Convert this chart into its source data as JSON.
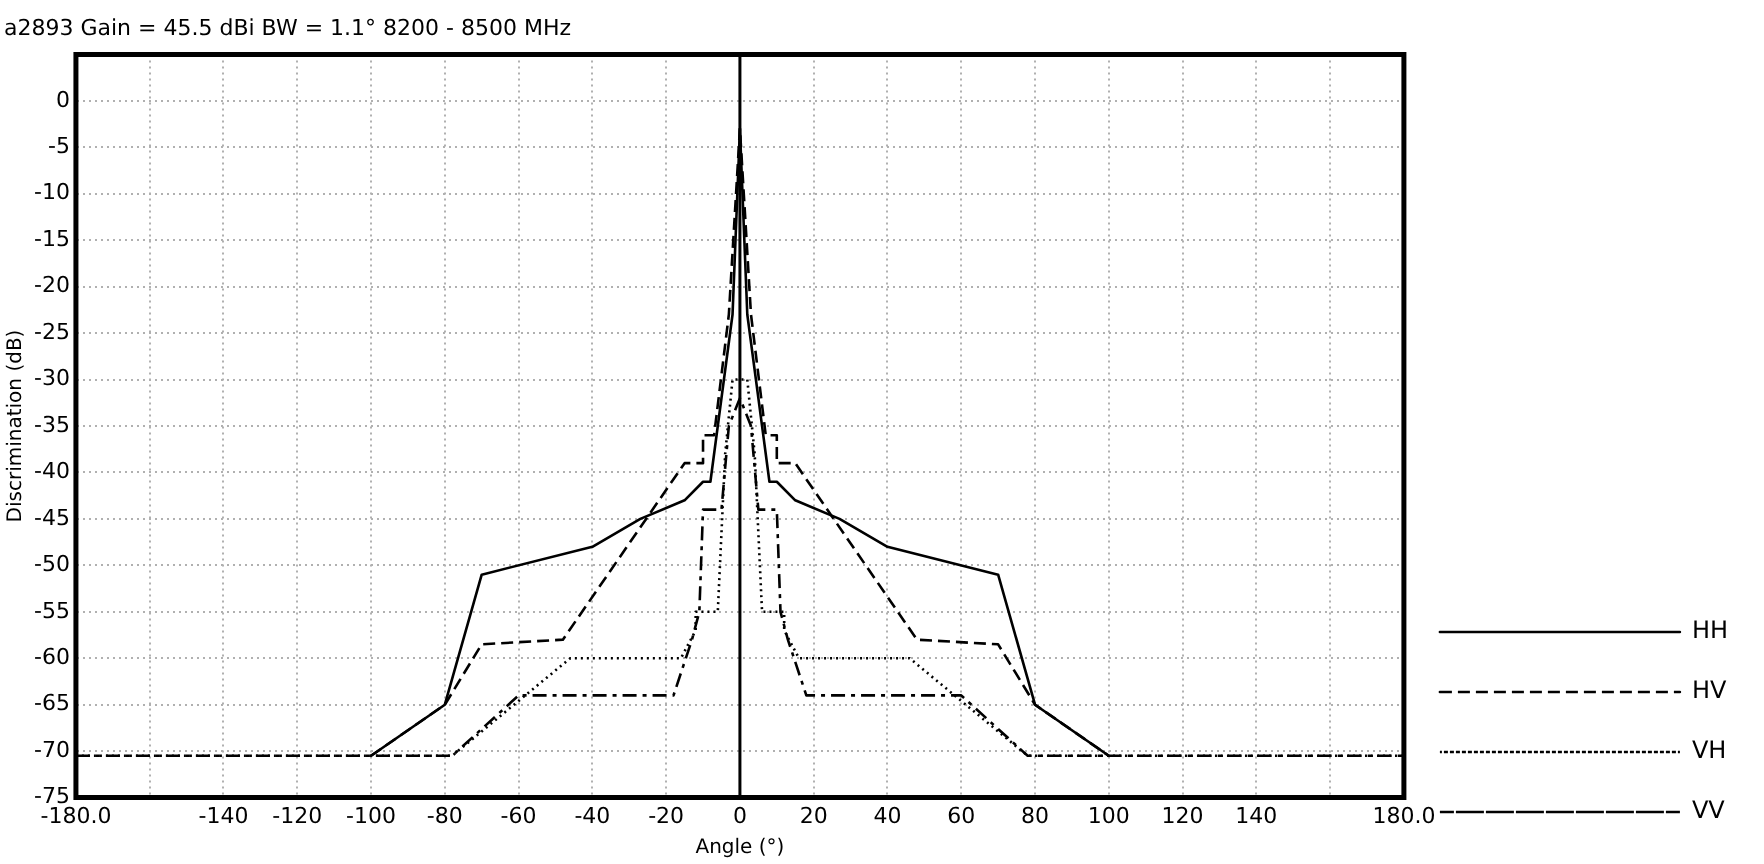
{
  "chart_data": {
    "type": "line",
    "title": "a2893 Gain = 45.5 dBi BW = 1.1° 8200 - 8500 MHz",
    "xlabel": "Angle (°)",
    "ylabel": "Discrimination (dB)",
    "xlim": [
      -180,
      180
    ],
    "xticks": [
      {
        "value": -180,
        "label": "-180.0"
      },
      {
        "value": -160,
        "label": null
      },
      -140,
      -120,
      -100,
      -80,
      -60,
      -40,
      -20,
      0,
      20,
      40,
      60,
      80,
      100,
      120,
      140,
      {
        "value": 160,
        "label": null
      },
      {
        "value": 180,
        "label": "180.0"
      }
    ],
    "ylim": [
      -75,
      5
    ],
    "yticks": [
      0,
      -5,
      -10,
      -15,
      -20,
      -25,
      -30,
      -35,
      -40,
      -45,
      -50,
      -55,
      -60,
      -65,
      -70,
      -75
    ],
    "grid": true,
    "legend": "right",
    "marker": "none",
    "ref_lines": [
      {
        "axis": "x",
        "value": 0,
        "color": "#000000"
      }
    ],
    "series": [
      {
        "name": "HH",
        "color": "#000000",
        "line_style": "solid",
        "x": [
          -100,
          -80,
          -70,
          -40,
          -27,
          -15,
          -10,
          -8,
          -2,
          0,
          2,
          8,
          10,
          15,
          27,
          40,
          70,
          80,
          100
        ],
        "values": [
          -70.5,
          -65,
          -51,
          -48,
          -45,
          -43,
          -41,
          -41,
          -23,
          -3,
          -23,
          -41,
          -41,
          -43,
          -45,
          -48,
          -51,
          -65,
          -70.5
        ]
      },
      {
        "name": "HV",
        "color": "#000000",
        "line_style": "dashed",
        "x": [
          -100,
          -80,
          -70,
          -48,
          -15,
          -10,
          -10,
          -7,
          -3,
          0,
          3,
          7,
          10,
          10,
          15,
          48,
          70,
          80,
          100
        ],
        "values": [
          -70.5,
          -65,
          -58.5,
          -58,
          -39,
          -39,
          -36,
          -36,
          -23,
          -3,
          -23,
          -36,
          -36,
          -39,
          -39,
          -58,
          -58.5,
          -65,
          -70.5
        ]
      },
      {
        "name": "VH",
        "color": "#000000",
        "line_style": "dotted",
        "x": [
          -180,
          -78,
          -46,
          -16,
          -12,
          -12,
          -6,
          -4,
          -2,
          2,
          4,
          6,
          12,
          12,
          16,
          46,
          78,
          180
        ],
        "values": [
          -70.5,
          -70.5,
          -60,
          -60,
          -57,
          -55,
          -55,
          -38,
          -30,
          -30,
          -38,
          -55,
          -55,
          -57,
          -60,
          -60,
          -70.5,
          -70.5
        ]
      },
      {
        "name": "VV",
        "color": "#000000",
        "line_style": "dashdot",
        "x": [
          -180,
          -78,
          -60,
          -18,
          -13,
          -11,
          -10,
          -5,
          -3,
          0,
          3,
          5,
          10,
          11,
          13,
          18,
          60,
          78,
          180
        ],
        "values": [
          -70.5,
          -70.5,
          -64,
          -64,
          -58,
          -55,
          -44,
          -44,
          -35,
          -32,
          -35,
          -44,
          -44,
          -55,
          -58,
          -64,
          -64,
          -70.5,
          -70.5
        ]
      }
    ]
  }
}
